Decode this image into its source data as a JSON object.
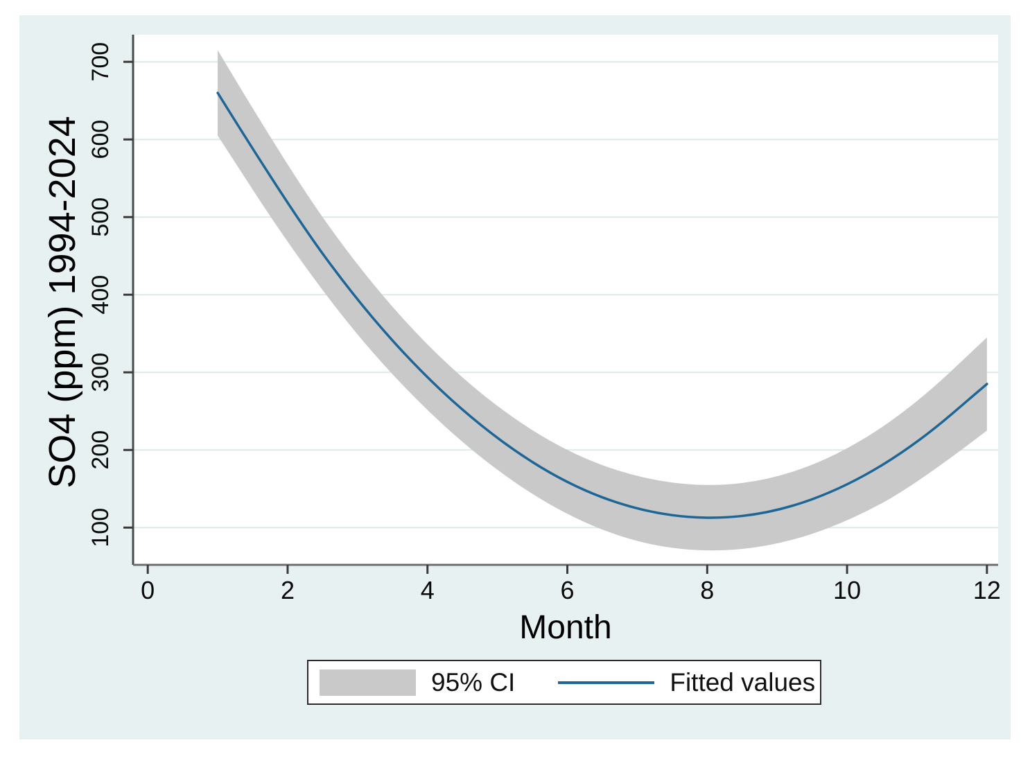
{
  "chart_data": {
    "type": "line",
    "x": [
      1,
      2,
      3,
      4,
      5,
      6,
      7,
      8,
      9,
      10,
      11,
      12
    ],
    "series": [
      {
        "name": "Fitted values",
        "kind": "line",
        "values": [
          660,
          515,
          391,
          291,
          213,
          156,
          122,
          110,
          120,
          153,
          208,
          285
        ]
      },
      {
        "name": "95% CI",
        "kind": "band",
        "upper": [
          715,
          564,
          436,
          333,
          254,
          197,
          164,
          152,
          163,
          199,
          260,
          345
        ],
        "lower": [
          605,
          466,
          346,
          249,
          172,
          115,
          80,
          68,
          77,
          107,
          156,
          225
        ]
      }
    ],
    "xlabel": "Month",
    "ylabel": "SO4 (ppm) 1994-2024",
    "x_ticks": [
      0,
      2,
      4,
      6,
      8,
      10,
      12
    ],
    "y_ticks": [
      100,
      200,
      300,
      400,
      500,
      600,
      700
    ],
    "xlim": [
      -0.21,
      12.16
    ],
    "ylim": [
      52,
      735
    ],
    "grid": "horizontal-only",
    "legend_position": "bottom-center",
    "colors": {
      "fitted_line": "#1d6696",
      "ci_band": "#c9c9c9",
      "figure_background": "#e8f1f1",
      "plot_background": "#ffffff",
      "gridline": "#dbeaec",
      "axis": "#6e6e6e",
      "tick": "#3a3a3a",
      "text": "#0a0a0a"
    }
  },
  "legend": {
    "items": [
      {
        "swatch": "ci-band",
        "label": "95% CI"
      },
      {
        "swatch": "fitted-line",
        "label": "Fitted values"
      }
    ]
  }
}
